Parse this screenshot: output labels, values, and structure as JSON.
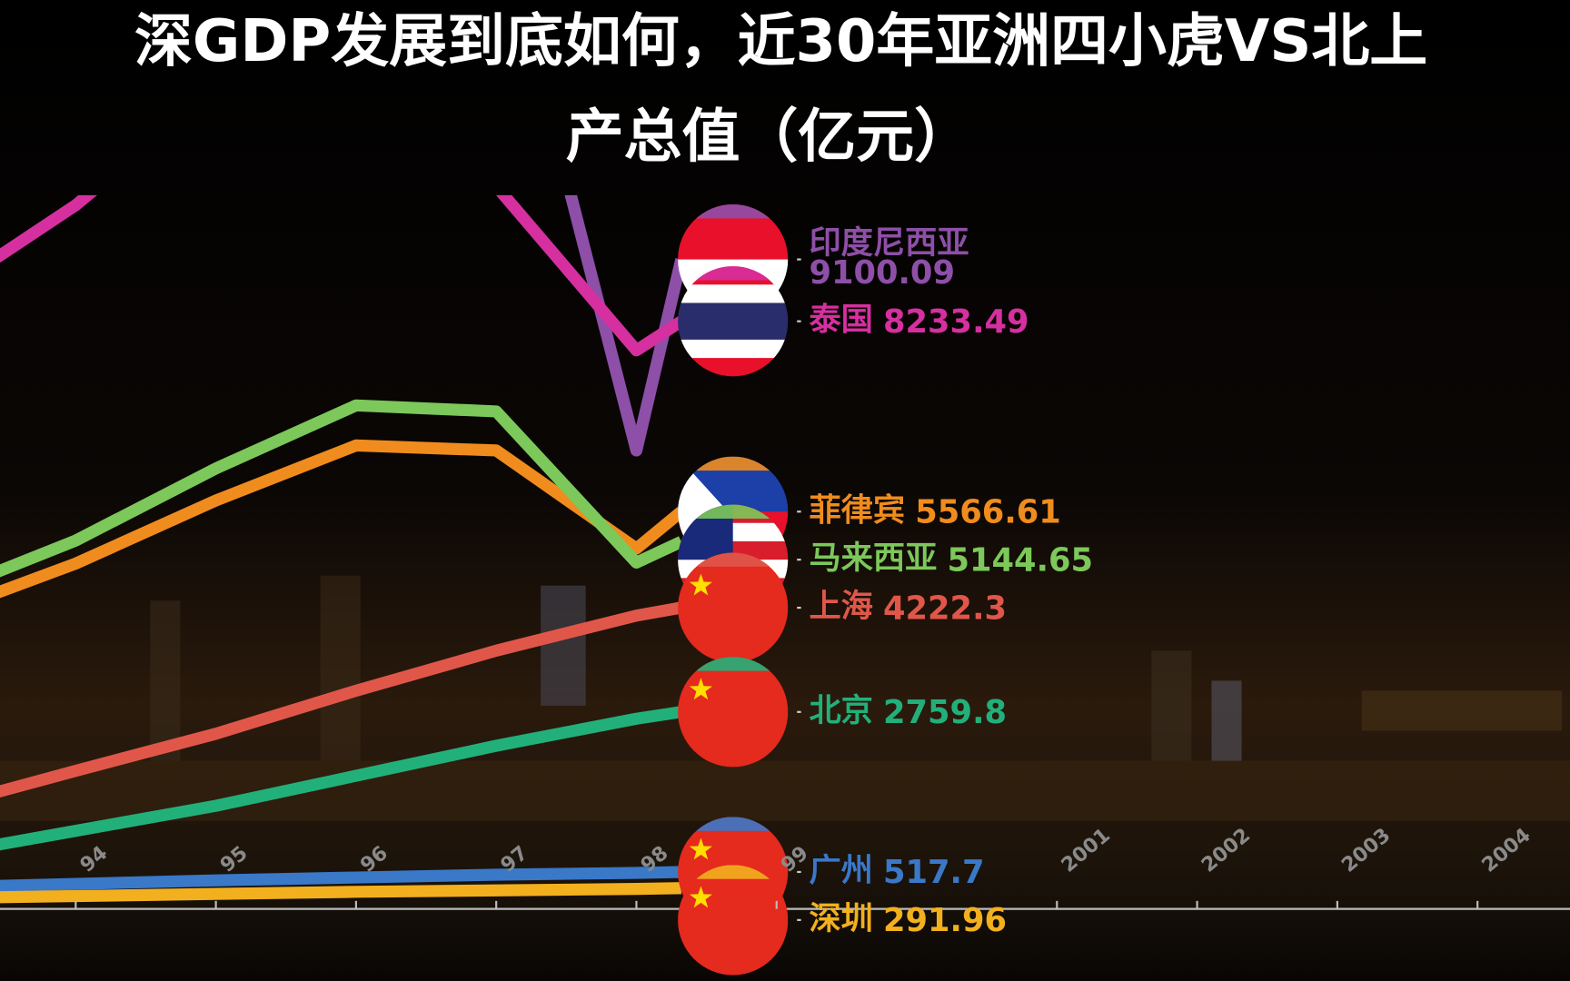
{
  "chart_data": {
    "type": "line",
    "title": [
      "深GDP发展到底如何，近30年亚洲四小虎VS北上",
      "产总值（亿元）"
    ],
    "x": [
      1993,
      1994,
      1995,
      1996,
      1997,
      1998,
      1998.32
    ],
    "xlim": [
      1993.46,
      2004.66
    ],
    "xticks": [
      {
        "value": 1994,
        "label": "94"
      },
      {
        "value": 1995,
        "label": "95"
      },
      {
        "value": 1996,
        "label": "96"
      },
      {
        "value": 1997,
        "label": "97"
      },
      {
        "value": 1998,
        "label": "98"
      },
      {
        "value": 1999,
        "label": "99"
      },
      2001,
      2002,
      2003,
      2004
    ],
    "ylim": [
      0,
      10000
    ],
    "series": [
      {
        "name": "印度尼西亚",
        "color": "#8e4fa8",
        "values": [
          null,
          null,
          null,
          null,
          14070,
          6424,
          9100.09
        ]
      },
      {
        "name": "泰国",
        "color": "#d62fa0",
        "values": [
          8555,
          9860,
          11500,
          12500,
          10126,
          7826,
          8233.49
        ]
      },
      {
        "name": "菲律宾",
        "color": "#f08c1e",
        "values": [
          4109,
          4839,
          5722,
          6494,
          6424,
          5049,
          5566.61
        ]
      },
      {
        "name": "马来西亚",
        "color": "#7cc85a",
        "values": [
          4376,
          5161,
          6171,
          7055,
          6970,
          4853,
          5144.65
        ]
      },
      {
        "name": "上海",
        "color": "#e0574a",
        "values": [
          1403,
          1935,
          2454,
          3058,
          3618,
          4109,
          4222.3
        ]
      },
      {
        "name": "北京",
        "color": "#22b07a",
        "values": [
          743,
          1094,
          1445,
          1865,
          2286,
          2665,
          2759.8
        ]
      },
      {
        "name": "广州",
        "color": "#3a78c8",
        "values": [
          300,
          350,
          400,
          440,
          480,
          505,
          517.7
        ]
      },
      {
        "name": "深圳",
        "color": "#f2b01e",
        "values": [
          150,
          180,
          210,
          240,
          260,
          280,
          291.96
        ]
      }
    ]
  }
}
